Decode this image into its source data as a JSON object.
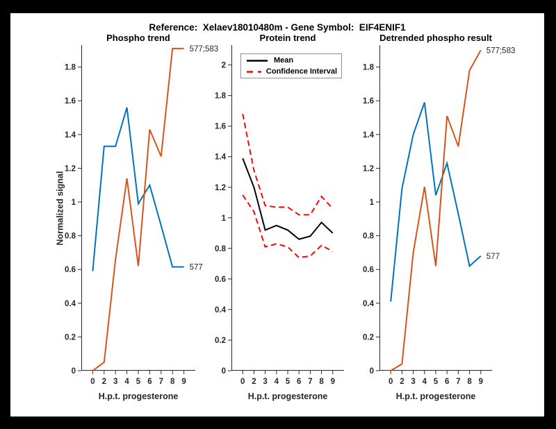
{
  "page": {
    "title": "Reference:  Xelaev18010480m - Gene Symbol:  EIF4ENIF1",
    "background_color": "#000000",
    "canvas_color": "#ffffff"
  },
  "colors": {
    "blue": "#0072BD",
    "orange": "#D95319",
    "red": "#FF0000",
    "black": "#000000",
    "axis": "#262626"
  },
  "chart_data": [
    {
      "type": "line",
      "title": "Phospho trend",
      "xlabel": "H.p.t. progesterone",
      "ylabel": "Normalized signal",
      "x_labels": [
        "0",
        "2",
        "3",
        "4",
        "5",
        "6",
        "7",
        "8",
        "9"
      ],
      "ymax": 1.93,
      "ytick_vals": [
        0,
        0.2,
        0.4,
        0.6,
        0.8,
        1,
        1.2,
        1.4,
        1.6,
        1.8
      ],
      "ytick_labels": [
        "0",
        "0.2",
        "0.4",
        "0.6",
        "0.8",
        "1",
        "1.2",
        "1.4",
        "1.6",
        "1.8"
      ],
      "grid": false,
      "series": [
        {
          "name": "phospho-site-577",
          "color": "#0072BD",
          "dash": false,
          "values": [
            0.59,
            1.33,
            1.33,
            1.56,
            0.99,
            1.1,
            0.86,
            0.615,
            0.615
          ],
          "end_label": "577"
        },
        {
          "name": "phospho-site-577-583",
          "color": "#D95319",
          "dash": false,
          "values": [
            0.0,
            0.05,
            0.66,
            1.14,
            0.62,
            1.43,
            1.27,
            1.91,
            1.91
          ],
          "end_label": "577;583"
        }
      ]
    },
    {
      "type": "line",
      "title": "Protein trend",
      "xlabel": "H.p.t. progesterone",
      "ylabel": "",
      "x_labels": [
        "0",
        "2",
        "3",
        "4",
        "5",
        "6",
        "7",
        "8",
        "9"
      ],
      "ymax": 2.13,
      "ytick_vals": [
        0,
        0.2,
        0.4,
        0.6,
        0.8,
        1,
        1.2,
        1.4,
        1.6,
        1.8,
        2
      ],
      "ytick_labels": [
        "0",
        "0.2",
        "0.4",
        "0.6",
        "0.8",
        "1",
        "1.2",
        "1.4",
        "1.6",
        "1.8",
        "2"
      ],
      "grid": false,
      "legend": {
        "position": "north",
        "items": [
          {
            "label": "Mean",
            "color": "#000000",
            "style": "solid"
          },
          {
            "label": "Confidence Interval",
            "color": "#FF0000",
            "style": "dashed"
          }
        ]
      },
      "series": [
        {
          "name": "protein-mean",
          "color": "#000000",
          "dash": false,
          "values": [
            1.39,
            1.2,
            0.92,
            0.95,
            0.92,
            0.86,
            0.88,
            0.97,
            0.9
          ],
          "end_label": ""
        },
        {
          "name": "confidence-interval-upper",
          "color": "#FF0000",
          "dash": true,
          "values": [
            1.68,
            1.31,
            1.08,
            1.07,
            1.07,
            1.02,
            1.02,
            1.14,
            1.06
          ],
          "end_label": ""
        },
        {
          "name": "confidence-interval-lower",
          "color": "#FF0000",
          "dash": true,
          "values": [
            1.15,
            1.04,
            0.81,
            0.83,
            0.81,
            0.74,
            0.75,
            0.82,
            0.78
          ],
          "end_label": ""
        }
      ]
    },
    {
      "type": "line",
      "title": "Detrended phospho result",
      "xlabel": "H.p.t. progesterone",
      "ylabel": "",
      "x_labels": [
        "0",
        "2",
        "3",
        "4",
        "5",
        "6",
        "7",
        "8",
        "9"
      ],
      "ymax": 1.93,
      "ytick_vals": [
        0,
        0.2,
        0.4,
        0.6,
        0.8,
        1,
        1.2,
        1.4,
        1.6,
        1.8
      ],
      "ytick_labels": [
        "0",
        "0.2",
        "0.4",
        "0.6",
        "0.8",
        "1",
        "1.2",
        "1.4",
        "1.6",
        "1.8"
      ],
      "grid": false,
      "series": [
        {
          "name": "detrended-site-577",
          "color": "#0072BD",
          "dash": false,
          "values": [
            0.41,
            1.08,
            1.4,
            1.59,
            1.04,
            1.23,
            0.93,
            0.62,
            0.68
          ],
          "end_label": "577"
        },
        {
          "name": "detrended-site-577-583",
          "color": "#D95319",
          "dash": false,
          "values": [
            0.0,
            0.04,
            0.7,
            1.09,
            0.62,
            1.51,
            1.33,
            1.78,
            1.9
          ],
          "end_label": "577;583"
        }
      ]
    }
  ]
}
